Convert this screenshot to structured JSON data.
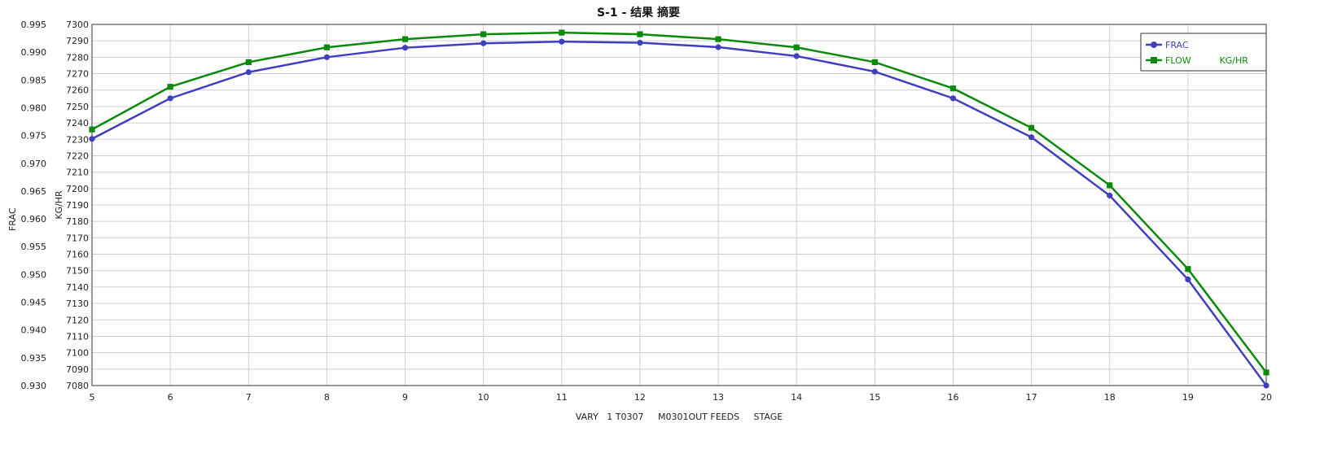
{
  "chart_data": {
    "type": "line",
    "title": "S-1 - 结果 摘要",
    "xlabel": "VARY   1 T0307     M0301OUT FEEDS     STAGE",
    "ylabel_left": "FRAC",
    "ylabel_right": "KG/HR",
    "x": [
      5,
      6,
      7,
      8,
      9,
      10,
      11,
      12,
      13,
      14,
      15,
      16,
      17,
      18,
      19,
      20
    ],
    "xlim": [
      5,
      20
    ],
    "ylim_left": [
      0.93,
      0.995
    ],
    "ylim_right": [
      7080,
      7300
    ],
    "left_ticks": [
      "0.930",
      "0.935",
      "0.940",
      "0.945",
      "0.950",
      "0.955",
      "0.960",
      "0.965",
      "0.970",
      "0.975",
      "0.980",
      "0.985",
      "0.990",
      "0.995"
    ],
    "right_ticks": [
      "7080",
      "7090",
      "7100",
      "7110",
      "7120",
      "7130",
      "7140",
      "7150",
      "7160",
      "7170",
      "7180",
      "7190",
      "7200",
      "7210",
      "7220",
      "7230",
      "7240",
      "7250",
      "7260",
      "7270",
      "7280",
      "7290",
      "7300"
    ],
    "grid": true,
    "legend_position": "top-right",
    "series": [
      {
        "name": "FRAC",
        "axis": "left",
        "color": "#3f3fbf",
        "marker": "circle",
        "values": [
          0.9744,
          0.9817,
          0.9864,
          0.9891,
          0.9908,
          0.9916,
          0.9919,
          0.9917,
          0.9909,
          0.9893,
          0.9865,
          0.9817,
          0.9747,
          0.9642,
          0.9491,
          0.93
        ]
      },
      {
        "name": "FLOW          KG/HR",
        "axis": "right",
        "color": "#0a8a0a",
        "marker": "square",
        "values": [
          7236,
          7262,
          7277,
          7286,
          7291,
          7294,
          7295,
          7294,
          7291,
          7286,
          7277,
          7261,
          7237,
          7202,
          7151,
          7088
        ]
      }
    ]
  }
}
